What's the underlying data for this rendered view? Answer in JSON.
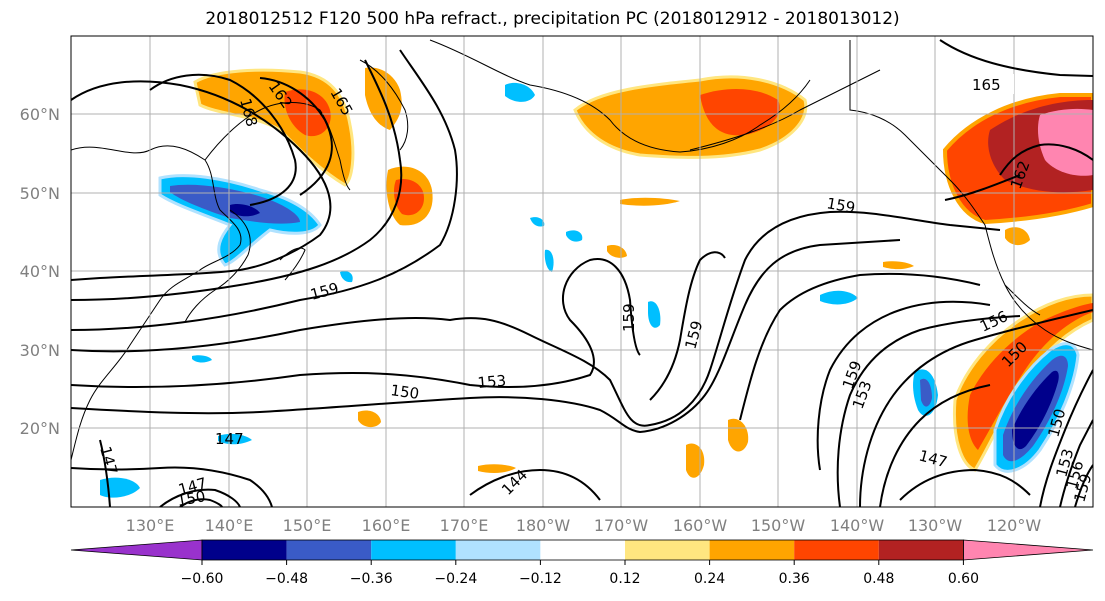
{
  "title": "2018012512 F120 500 hPa refract., precipitation PC (2018012912 - 2018013012)",
  "lat_labels": [
    "60°N",
    "50°N",
    "40°N",
    "30°N",
    "20°N"
  ],
  "lon_labels": [
    "130°E",
    "140°E",
    "150°E",
    "160°E",
    "170°E",
    "180°W",
    "170°W",
    "160°W",
    "150°W",
    "140°W",
    "130°W",
    "120°W"
  ],
  "contour_labels": [
    "165",
    "162",
    "168",
    "165",
    "159",
    "162",
    "159",
    "159",
    "159",
    "153",
    "150",
    "147",
    "144",
    "147",
    "147",
    "150",
    "159",
    "153",
    "156",
    "150",
    "150",
    "153",
    "156",
    "159",
    "147"
  ],
  "colorbar": {
    "ticks": [
      "−0.60",
      "−0.48",
      "−0.36",
      "−0.24",
      "−0.12",
      "0.12",
      "0.24",
      "0.36",
      "0.48",
      "0.60"
    ],
    "colors": [
      "#9932CC",
      "#00008B",
      "#3A5BC7",
      "#00BFFF",
      "#B0E2FF",
      "#FFFFFF",
      "#FFE680",
      "#FFA500",
      "#FF4500",
      "#B22222",
      "#FF85B0"
    ]
  }
}
